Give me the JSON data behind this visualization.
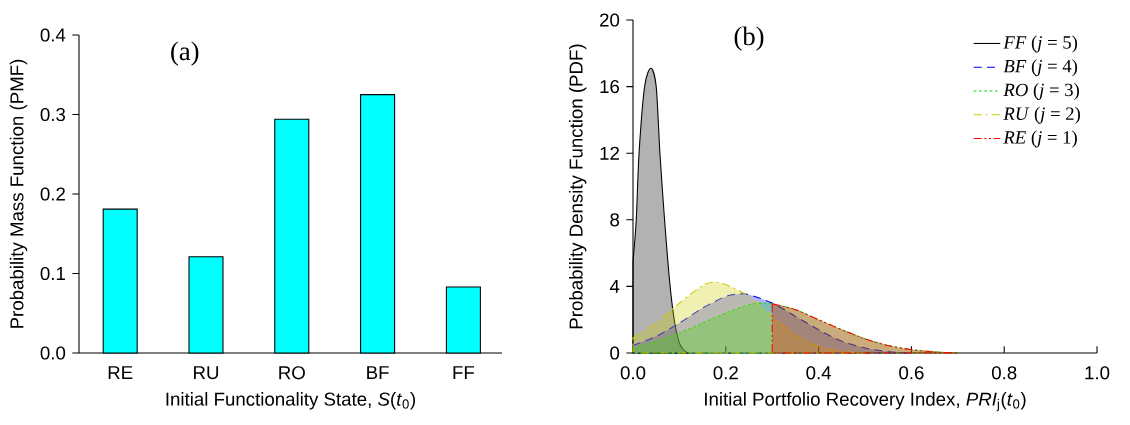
{
  "chart_data": [
    {
      "type": "bar",
      "title": "(a)",
      "xlabel": "Initial Functionality State, *S*(*t*$_{0}$)",
      "ylabel": "Probability Mass Function (PMF)",
      "categories": [
        "RE",
        "RU",
        "RO",
        "BF",
        "FF"
      ],
      "values": [
        0.181,
        0.121,
        0.294,
        0.325,
        0.083
      ],
      "color": "#00ffff",
      "ylim": [
        0,
        0.4
      ],
      "yticks": [
        {
          "value": 0,
          "label": "0.0"
        },
        {
          "value": 0.1,
          "label": "0.1"
        },
        {
          "value": 0.2,
          "label": "0.2"
        },
        {
          "value": 0.3,
          "label": "0.3"
        },
        {
          "value": 0.4,
          "label": "0.4"
        }
      ],
      "grid": false
    },
    {
      "type": "area",
      "title": "(b)",
      "xlabel": "Initial Portfolio Recovery Index, *PRI*$_{j}$(*t*$_{0}$)",
      "ylabel": "Probability Density Function (PDF)",
      "xlim": [
        0,
        1
      ],
      "ylim": [
        0,
        20
      ],
      "xticks": [
        {
          "value": 0,
          "label": "0.0"
        },
        {
          "value": 0.2,
          "label": "0.2"
        },
        {
          "value": 0.4,
          "label": "0.4"
        },
        {
          "value": 0.6,
          "label": "0.6"
        },
        {
          "value": 0.8,
          "label": "0.8"
        },
        {
          "value": 1,
          "label": "1.0"
        }
      ],
      "yticks": [
        0,
        4,
        8,
        12,
        16,
        20
      ],
      "grid": false,
      "legend": "top right",
      "series": [
        {
          "name": "*FF* (*j* = 5)",
          "color": "#000000",
          "line_style": "solid",
          "x": [
            0,
            0.007,
            0.013,
            0.025,
            0.0385,
            0.05,
            0.058,
            0.068,
            0.08,
            0.09,
            0.1,
            0.11,
            0.12
          ],
          "values": [
            5.5,
            8,
            12,
            16,
            17.1,
            16,
            12,
            8,
            4,
            1.8,
            0.6,
            0.15,
            0
          ]
        },
        {
          "name": "*BF* (*j* = 4)",
          "color": "#0000ff",
          "line_style": "dashed",
          "x": [
            0,
            0.05,
            0.1,
            0.15,
            0.2,
            0.23,
            0.25,
            0.3,
            0.35,
            0.4,
            0.45,
            0.5,
            0.55,
            0.6
          ],
          "values": [
            0.45,
            1.0,
            1.8,
            2.7,
            3.4,
            3.55,
            3.5,
            3.0,
            2.2,
            1.4,
            0.7,
            0.3,
            0.08,
            0
          ]
        },
        {
          "name": "*RO* (*j* = 3)",
          "color": "#00dd00",
          "line_style": "dotted",
          "x": [
            0,
            0.05,
            0.1,
            0.15,
            0.2,
            0.25,
            0.28,
            0.3,
            0.35,
            0.4,
            0.45,
            0.5,
            0.55,
            0.6,
            0.65,
            0.7
          ],
          "values": [
            0.3,
            0.7,
            1.2,
            1.8,
            2.4,
            2.9,
            3.0,
            2.95,
            2.6,
            2.0,
            1.4,
            0.85,
            0.45,
            0.2,
            0.07,
            0
          ]
        },
        {
          "name": "*RU* (*j* = 2)",
          "color": "#cccc00",
          "line_style": "dashdot",
          "x": [
            0,
            0.05,
            0.1,
            0.15,
            0.175,
            0.2,
            0.25,
            0.3,
            0.35,
            0.4,
            0.45,
            0.5
          ],
          "values": [
            0.9,
            1.8,
            3.0,
            4.05,
            4.25,
            4.1,
            3.4,
            2.2,
            1.1,
            0.4,
            0.1,
            0
          ]
        },
        {
          "name": "*RE* (*j* = 1)",
          "color": "#ff0000",
          "line_style": "dashdotdot",
          "x": [
            0.3,
            0.35,
            0.4,
            0.45,
            0.5,
            0.55,
            0.6,
            0.65,
            0.7
          ],
          "values": [
            2.95,
            2.6,
            2.0,
            1.4,
            0.85,
            0.45,
            0.2,
            0.07,
            0
          ]
        }
      ]
    }
  ]
}
